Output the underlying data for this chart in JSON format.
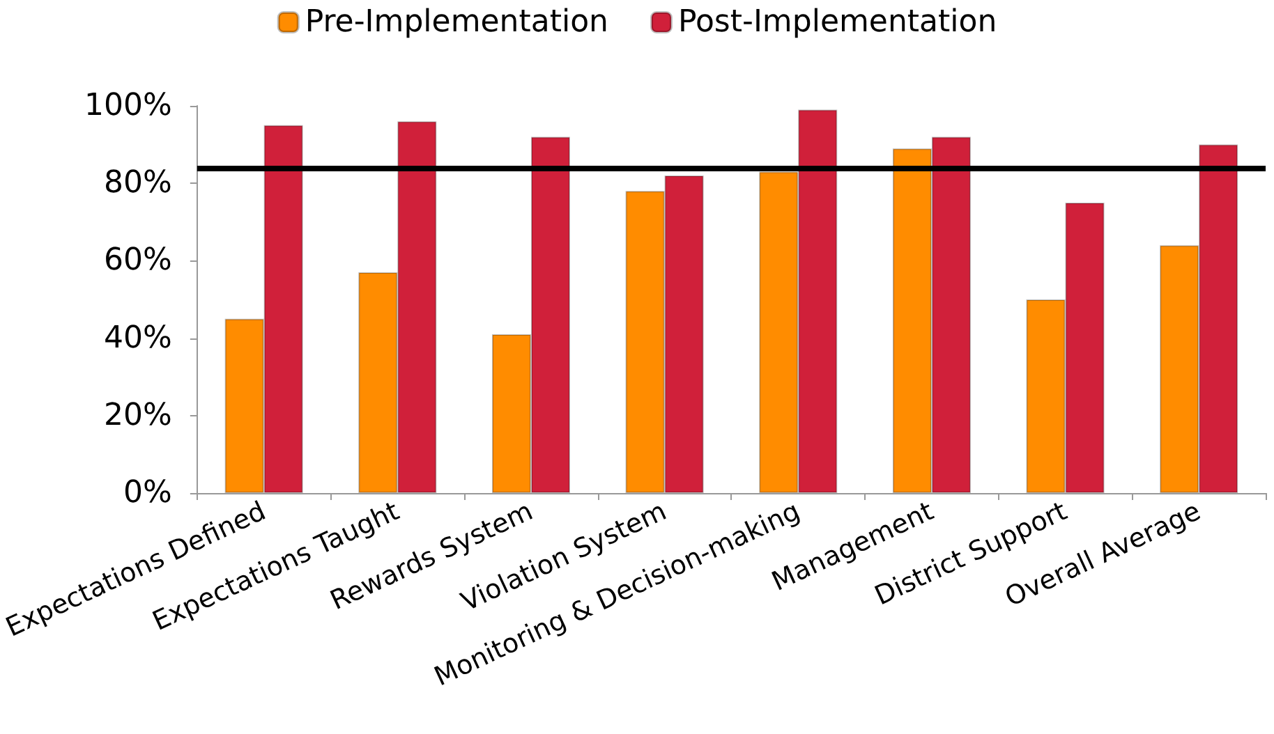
{
  "chart_data": {
    "type": "bar",
    "categories": [
      "Expectations Defined",
      "Expectations Taught",
      "Rewards System",
      "Violation System",
      "Monitoring & Decision-making",
      "Management",
      "District Support",
      "Overall Average"
    ],
    "series": [
      {
        "name": "Pre-Implementation",
        "color": "#ff8c00",
        "values": [
          45,
          57,
          41,
          78,
          83,
          89,
          50,
          64
        ]
      },
      {
        "name": "Post-Implementation",
        "color": "#d0203a",
        "values": [
          95,
          96,
          92,
          82,
          99,
          92,
          75,
          90
        ]
      }
    ],
    "ylim": [
      0,
      100
    ],
    "yticks": [
      {
        "value": 0,
        "label": "0%"
      },
      {
        "value": 20,
        "label": "20%"
      },
      {
        "value": 40,
        "label": "40%"
      },
      {
        "value": 60,
        "label": "60%"
      },
      {
        "value": 80,
        "label": "80%"
      },
      {
        "value": 100,
        "label": "100%"
      }
    ],
    "ref_lines": [
      {
        "axis": "y",
        "value": 84,
        "color": "#000000"
      }
    ],
    "grid": false,
    "legend": "top"
  }
}
